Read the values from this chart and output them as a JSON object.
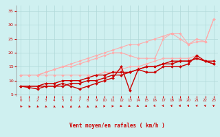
{
  "bg_color": "#cff0f0",
  "grid_color": "#b0d8d8",
  "line_color_dark": "#cc0000",
  "line_color_light": "#ff9999",
  "xlabel": "Vent moyen/en rafales ( km/h )",
  "xlabel_color": "#cc0000",
  "yticks": [
    5,
    10,
    15,
    20,
    25,
    30,
    35
  ],
  "xticks": [
    0,
    1,
    2,
    3,
    4,
    5,
    6,
    7,
    8,
    9,
    10,
    11,
    12,
    13,
    14,
    15,
    16,
    17,
    18,
    19,
    20,
    21,
    22,
    23
  ],
  "xlim": [
    -0.5,
    23.5
  ],
  "ylim": [
    4.5,
    37
  ],
  "series": [
    {
      "x": [
        0,
        1,
        2,
        3,
        4,
        5,
        6,
        7,
        8,
        9,
        10,
        11,
        12,
        13,
        14,
        15,
        16,
        17,
        18,
        19,
        20,
        21,
        22,
        23
      ],
      "y": [
        12,
        12,
        12,
        12,
        12,
        12,
        12,
        12,
        12,
        12,
        13,
        13,
        14,
        15,
        15,
        16,
        17,
        18,
        18,
        18,
        18,
        19,
        17,
        17
      ],
      "color": "#ffaaaa",
      "lw": 0.8,
      "marker": "D",
      "ms": 1.8
    },
    {
      "x": [
        0,
        1,
        2,
        3,
        4,
        5,
        6,
        7,
        8,
        9,
        10,
        11,
        12,
        13,
        14,
        15,
        16,
        17,
        18,
        19,
        20,
        21,
        22,
        23
      ],
      "y": [
        12,
        12,
        12,
        13,
        14,
        15,
        16,
        17,
        18,
        19,
        20,
        21,
        22,
        23,
        23,
        24,
        25,
        26,
        27,
        27,
        23,
        25,
        24,
        32
      ],
      "color": "#ffaaaa",
      "lw": 0.8,
      "marker": "D",
      "ms": 1.8
    },
    {
      "x": [
        0,
        1,
        2,
        3,
        4,
        5,
        6,
        7,
        8,
        9,
        10,
        11,
        12,
        13,
        14,
        15,
        16,
        17,
        18,
        19,
        20,
        21,
        22,
        23
      ],
      "y": [
        12,
        12,
        12,
        13,
        14,
        15,
        15,
        16,
        17,
        18,
        19,
        20,
        20,
        19,
        18,
        18,
        18,
        25,
        27,
        25,
        23,
        24,
        24,
        32
      ],
      "color": "#ffaaaa",
      "lw": 0.8,
      "marker": "D",
      "ms": 1.8
    },
    {
      "x": [
        0,
        1,
        2,
        3,
        4,
        5,
        6,
        7,
        8,
        9,
        10,
        11,
        12,
        13,
        14,
        15,
        16,
        17,
        18,
        19,
        20,
        21,
        22,
        23
      ],
      "y": [
        8,
        8,
        8,
        8,
        8,
        8,
        9,
        9,
        10,
        10,
        11,
        12,
        12,
        13,
        14,
        15,
        15,
        16,
        17,
        17,
        17,
        18,
        17,
        16
      ],
      "color": "#cc0000",
      "lw": 1.0,
      "marker": "D",
      "ms": 2.0
    },
    {
      "x": [
        0,
        1,
        2,
        3,
        4,
        5,
        6,
        7,
        8,
        9,
        10,
        11,
        12,
        13,
        14,
        15,
        16,
        17,
        18,
        19,
        20,
        21,
        22,
        23
      ],
      "y": [
        8,
        7.5,
        7,
        8,
        8,
        9,
        8,
        7,
        8,
        9,
        10,
        11,
        15,
        6.5,
        14,
        13,
        13,
        15,
        15,
        15,
        16,
        19,
        17,
        16
      ],
      "color": "#cc0000",
      "lw": 1.0,
      "marker": "D",
      "ms": 2.0
    },
    {
      "x": [
        0,
        1,
        2,
        3,
        4,
        5,
        6,
        7,
        8,
        9,
        10,
        11,
        12,
        13,
        14,
        15,
        16,
        17,
        18,
        19,
        20,
        21,
        22,
        23
      ],
      "y": [
        8,
        8,
        8,
        9,
        9,
        10,
        10,
        10,
        11,
        12,
        12,
        13,
        13,
        13,
        14,
        15,
        15,
        16,
        16,
        17,
        17,
        18,
        17,
        17
      ],
      "color": "#cc0000",
      "lw": 1.0,
      "marker": "D",
      "ms": 2.0
    }
  ],
  "wind_dirs": [
    315,
    330,
    340,
    350,
    350,
    350,
    0,
    0,
    0,
    0,
    90,
    90,
    100,
    110,
    120,
    120,
    135,
    150,
    160,
    160,
    160,
    170,
    170,
    180
  ]
}
